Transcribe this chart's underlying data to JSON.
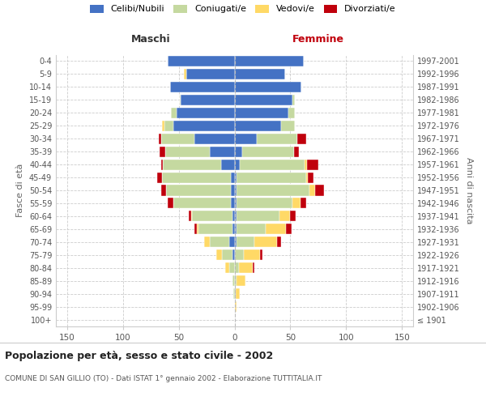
{
  "age_groups": [
    "100+",
    "95-99",
    "90-94",
    "85-89",
    "80-84",
    "75-79",
    "70-74",
    "65-69",
    "60-64",
    "55-59",
    "50-54",
    "45-49",
    "40-44",
    "35-39",
    "30-34",
    "25-29",
    "20-24",
    "15-19",
    "10-14",
    "5-9",
    "0-4"
  ],
  "birth_years": [
    "≤ 1901",
    "1902-1906",
    "1907-1911",
    "1912-1916",
    "1917-1921",
    "1922-1926",
    "1927-1931",
    "1932-1936",
    "1937-1941",
    "1942-1946",
    "1947-1951",
    "1952-1956",
    "1957-1961",
    "1962-1966",
    "1967-1971",
    "1972-1976",
    "1977-1981",
    "1982-1986",
    "1987-1991",
    "1992-1996",
    "1997-2001"
  ],
  "maschi": {
    "celibi": [
      0,
      0,
      0,
      0,
      0,
      2,
      5,
      2,
      2,
      3,
      3,
      3,
      12,
      22,
      36,
      55,
      52,
      48,
      58,
      43,
      60
    ],
    "coniugati": [
      0,
      0,
      1,
      2,
      5,
      9,
      17,
      30,
      36,
      52,
      58,
      62,
      52,
      40,
      30,
      8,
      5,
      1,
      0,
      0,
      0
    ],
    "vedovi": [
      0,
      0,
      0,
      0,
      3,
      5,
      5,
      2,
      1,
      0,
      0,
      0,
      0,
      0,
      0,
      2,
      0,
      0,
      0,
      2,
      0
    ],
    "divorziati": [
      0,
      0,
      0,
      0,
      0,
      0,
      0,
      2,
      2,
      5,
      5,
      4,
      2,
      5,
      2,
      0,
      0,
      0,
      0,
      0,
      0
    ]
  },
  "femmine": {
    "nubili": [
      0,
      0,
      1,
      0,
      0,
      0,
      2,
      2,
      2,
      2,
      2,
      2,
      5,
      7,
      20,
      42,
      48,
      52,
      60,
      45,
      62
    ],
    "coniugate": [
      0,
      0,
      0,
      2,
      4,
      8,
      16,
      26,
      38,
      50,
      65,
      62,
      58,
      46,
      36,
      12,
      6,
      2,
      0,
      0,
      0
    ],
    "vedove": [
      0,
      2,
      4,
      8,
      12,
      15,
      20,
      18,
      10,
      7,
      5,
      2,
      2,
      0,
      0,
      0,
      0,
      0,
      0,
      0,
      0
    ],
    "divorziate": [
      0,
      0,
      0,
      0,
      2,
      2,
      4,
      5,
      5,
      5,
      8,
      5,
      10,
      5,
      8,
      0,
      0,
      0,
      0,
      0,
      0
    ]
  },
  "colors": {
    "celibi_nubili": "#4472C4",
    "coniugati": "#C5D9A0",
    "vedovi": "#FFD966",
    "divorziati": "#C0000C"
  },
  "xlim": 160,
  "title": "Popolazione per età, sesso e stato civile - 2002",
  "subtitle": "COMUNE DI SAN GILLIO (TO) - Dati ISTAT 1° gennaio 2002 - Elaborazione TUTTITALIA.IT",
  "ylabel_left": "Fasce di età",
  "ylabel_right": "Anni di nascita",
  "label_maschi": "Maschi",
  "label_femmine": "Femmine",
  "legend_labels": [
    "Celibi/Nubili",
    "Coniugati/e",
    "Vedovi/e",
    "Divorziati/e"
  ],
  "bg_color": "#FFFFFF",
  "grid_color": "#CCCCCC"
}
